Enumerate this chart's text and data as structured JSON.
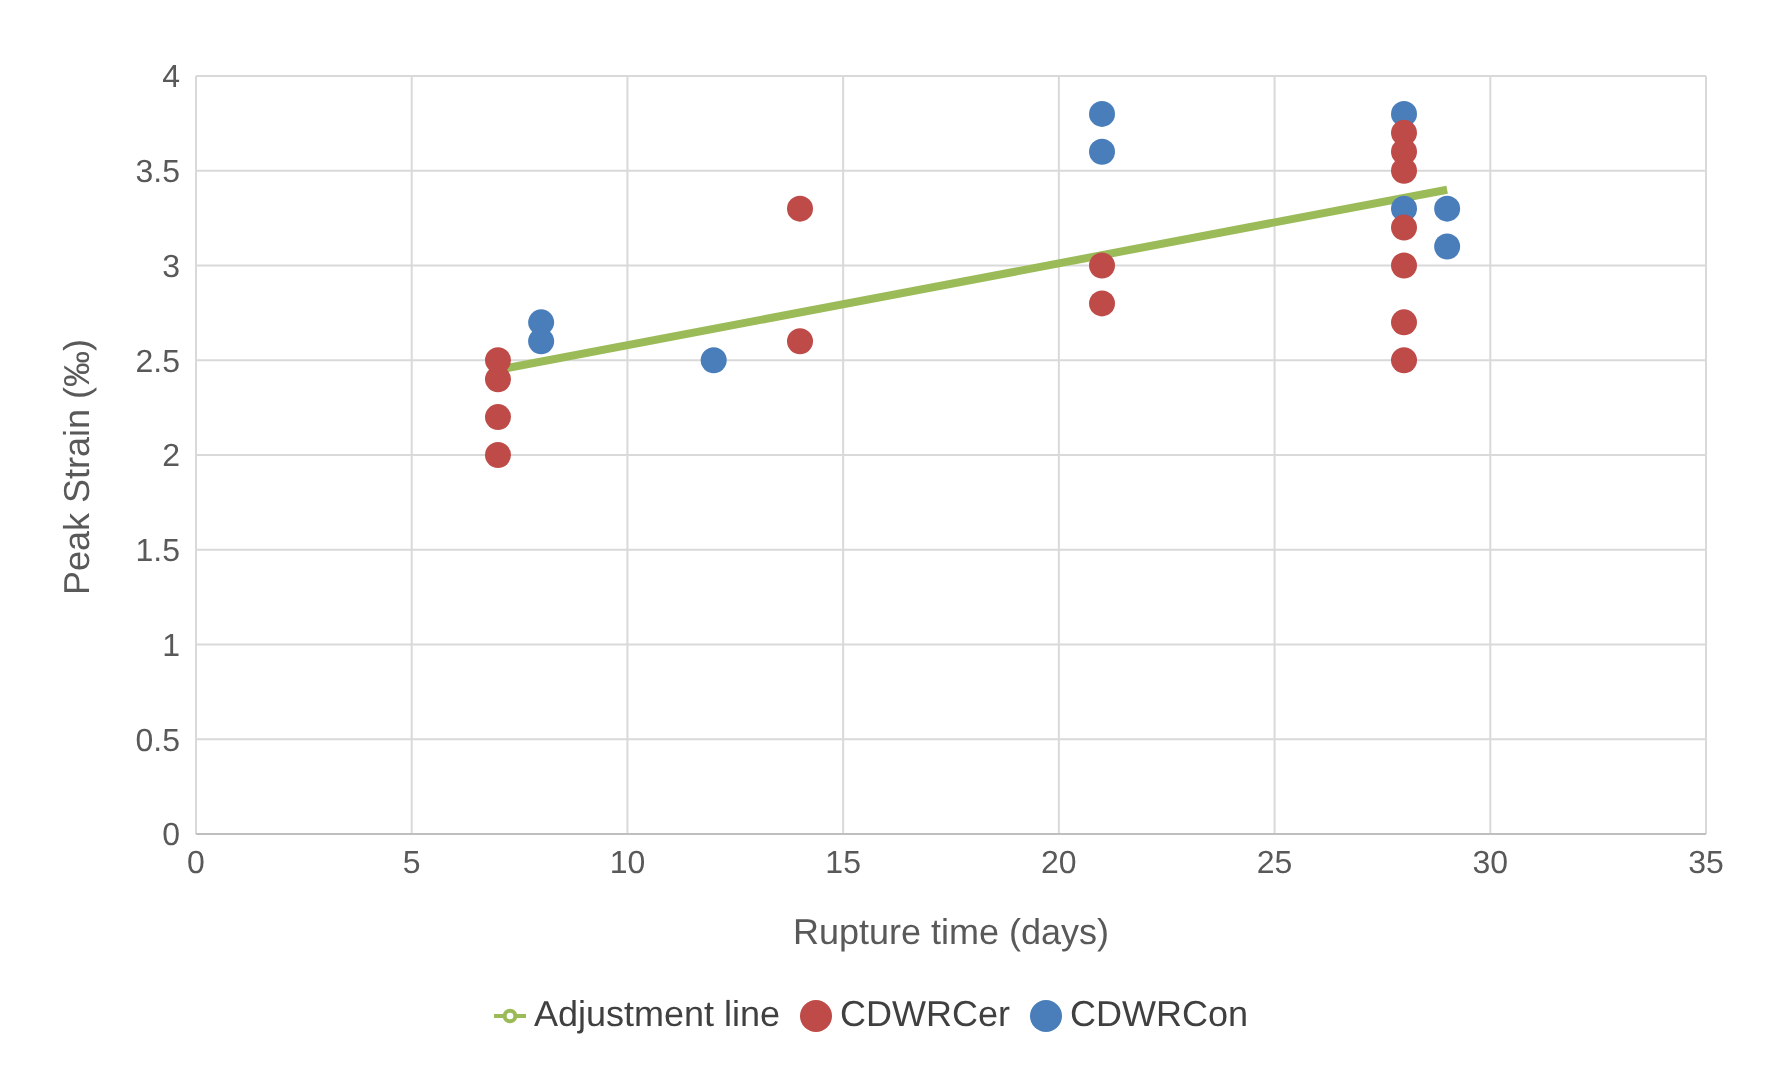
{
  "chart_data": {
    "type": "scatter",
    "xlabel": "Rupture time (days)",
    "ylabel": "Peak Strain (‰)",
    "xlim": [
      0,
      35
    ],
    "xticks": [
      0,
      5,
      10,
      15,
      20,
      25,
      30,
      35
    ],
    "ylim": [
      0,
      4
    ],
    "yticks": [
      0,
      0.5,
      1,
      1.5,
      2,
      2.5,
      3,
      3.5,
      4
    ],
    "grid": true,
    "legend": "bottom",
    "marker": "circle",
    "series": [
      {
        "name": "CDWRCon",
        "color": "#4a7ebb",
        "x": [
          8,
          8,
          12,
          21,
          21,
          28,
          28,
          29,
          29
        ],
        "values": [
          2.7,
          2.6,
          2.5,
          3.8,
          3.6,
          3.8,
          3.3,
          3.3,
          3.1
        ]
      },
      {
        "name": "CDWRCer",
        "color": "#be4b48",
        "x": [
          7,
          7,
          7,
          7,
          14,
          14,
          21,
          21,
          28,
          28,
          28,
          28,
          28,
          28,
          28
        ],
        "values": [
          2.5,
          2.4,
          2.2,
          2.0,
          3.3,
          2.6,
          3.0,
          2.8,
          3.7,
          3.6,
          3.5,
          3.2,
          3.0,
          2.7,
          2.5
        ]
      },
      {
        "name": "Adjustment line",
        "type": "line",
        "color": "#9bbb59",
        "marker": "none",
        "line_style": "solid",
        "x": [
          7,
          29
        ],
        "values": [
          2.45,
          3.4
        ]
      }
    ]
  }
}
